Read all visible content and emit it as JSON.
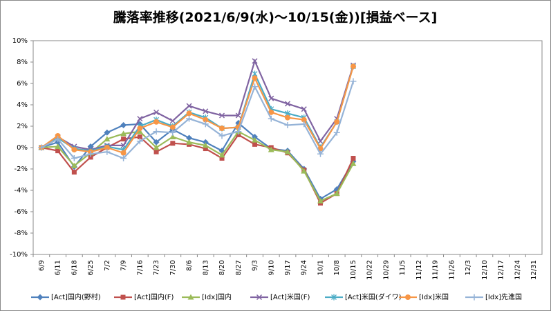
{
  "chart_data": {
    "type": "line",
    "title": "騰落率推移(2021/6/9(水)～10/15(金))[損益ベース]",
    "categories": [
      "6/9",
      "6/11",
      "6/18",
      "6/25",
      "7/2",
      "7/9",
      "7/16",
      "7/23",
      "7/30",
      "8/6",
      "8/13",
      "8/20",
      "8/27",
      "9/3",
      "9/10",
      "9/17",
      "9/24",
      "10/1",
      "10/8",
      "10/15",
      "10/22",
      "10/29",
      "11/5",
      "11/12",
      "11/19",
      "11/26",
      "12/3",
      "12/10",
      "12/17",
      "12/24",
      "12/31"
    ],
    "ylim": [
      -10,
      10
    ],
    "yticks": [
      {
        "value": -10,
        "label": "-10%"
      },
      {
        "value": -8,
        "label": "-8%"
      },
      {
        "value": -6,
        "label": "-6%"
      },
      {
        "value": -4,
        "label": "-4%"
      },
      {
        "value": -2,
        "label": "-2%"
      },
      {
        "value": 0,
        "label": "0%"
      },
      {
        "value": 2,
        "label": "2%"
      },
      {
        "value": 4,
        "label": "4%"
      },
      {
        "value": 6,
        "label": "6%"
      },
      {
        "value": 8,
        "label": "8%"
      },
      {
        "value": 10,
        "label": "10%"
      }
    ],
    "grid": false,
    "legend": "bottom",
    "series": [
      {
        "name": "[Act]国内(野村)",
        "color": "#4F81BD",
        "marker": "diamond",
        "values": [
          0,
          0.5,
          -1.8,
          0.1,
          1.4,
          2.1,
          2.2,
          0.5,
          1.7,
          0.9,
          0.5,
          -0.3,
          2.3,
          1.0,
          -0.1,
          -0.3,
          -2.0,
          -4.8,
          -3.9,
          -1.3,
          null,
          null,
          null,
          null,
          null,
          null,
          null,
          null,
          null,
          null,
          null
        ]
      },
      {
        "name": "[Act]国内(F)",
        "color": "#C0504D",
        "marker": "square",
        "values": [
          0,
          -0.3,
          -2.3,
          -0.9,
          0.0,
          0.8,
          1.0,
          -0.4,
          0.4,
          0.3,
          -0.1,
          -1.0,
          1.2,
          0.3,
          0.0,
          -0.5,
          -2.1,
          -5.2,
          -4.3,
          -1.0,
          null,
          null,
          null,
          null,
          null,
          null,
          null,
          null,
          null,
          null,
          null
        ]
      },
      {
        "name": "[Idx]国内",
        "color": "#9BBB59",
        "marker": "triangle",
        "values": [
          0,
          0.1,
          -1.7,
          -0.5,
          0.8,
          1.3,
          1.5,
          0.0,
          1.0,
          0.5,
          0.2,
          -0.7,
          1.5,
          0.7,
          -0.2,
          -0.4,
          -2.2,
          -5.0,
          -4.3,
          -1.5,
          null,
          null,
          null,
          null,
          null,
          null,
          null,
          null,
          null,
          null,
          null
        ]
      },
      {
        "name": "[Act]米国(F)",
        "color": "#8064A2",
        "marker": "x",
        "values": [
          0,
          1.0,
          0.1,
          -0.2,
          0.2,
          0.2,
          2.7,
          3.3,
          2.5,
          3.9,
          3.4,
          3.0,
          3.0,
          8.1,
          4.6,
          4.1,
          3.6,
          0.6,
          2.7,
          7.7,
          null,
          null,
          null,
          null,
          null,
          null,
          null,
          null,
          null,
          null,
          null
        ]
      },
      {
        "name": "[Act]米国(ダイワ)",
        "color": "#4BACC6",
        "marker": "star",
        "values": [
          0,
          0.9,
          -0.1,
          -0.3,
          0.1,
          -0.2,
          2.0,
          2.6,
          2.0,
          3.3,
          2.8,
          1.8,
          1.9,
          6.9,
          3.6,
          3.2,
          2.8,
          0.0,
          2.4,
          7.6,
          null,
          null,
          null,
          null,
          null,
          null,
          null,
          null,
          null,
          null,
          null
        ]
      },
      {
        "name": "[Idx]米国",
        "color": "#F79646",
        "marker": "circle",
        "values": [
          0,
          1.1,
          -0.2,
          -0.4,
          0.0,
          -0.5,
          1.8,
          2.4,
          1.9,
          3.2,
          2.6,
          1.8,
          1.9,
          6.5,
          3.3,
          2.8,
          2.6,
          -0.1,
          2.4,
          7.6,
          null,
          null,
          null,
          null,
          null,
          null,
          null,
          null,
          null,
          null,
          null
        ]
      },
      {
        "name": "[Idx]先進国",
        "color": "#95B3D7",
        "marker": "plus",
        "values": [
          0,
          0.8,
          -1.0,
          -0.6,
          -0.4,
          -1.0,
          0.6,
          1.5,
          1.4,
          2.7,
          2.2,
          1.1,
          1.5,
          5.7,
          2.7,
          2.1,
          2.2,
          -0.6,
          1.4,
          6.2,
          null,
          null,
          null,
          null,
          null,
          null,
          null,
          null,
          null,
          null,
          null
        ]
      }
    ]
  }
}
